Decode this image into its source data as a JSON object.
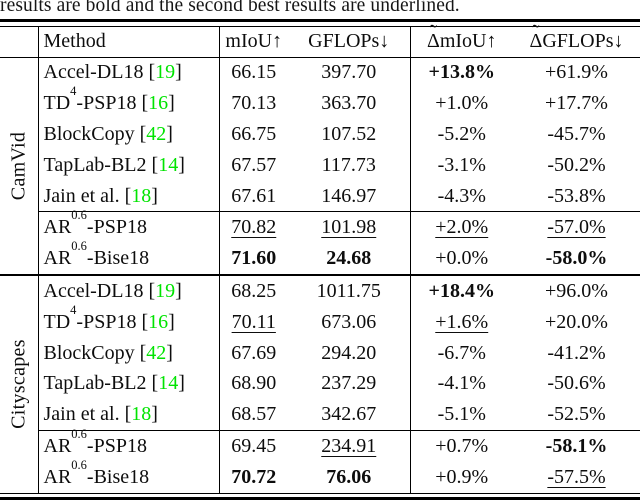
{
  "caption": "results are bold and the second best results are underlined.",
  "punct": {
    "lbracket": "[",
    "rbracket": "]"
  },
  "colors": {
    "citation_green": "#00e400",
    "rule_black": "#000000",
    "text": "#0d0d0d"
  },
  "header": {
    "method": "Method",
    "miou": "mIoU↑",
    "gflops": "GFLOPs↓",
    "tilde": "˜",
    "delta": "Δ",
    "dmiou_rest": "mIoU↑",
    "dgflops_rest": "GFLOPs↓"
  },
  "sections": [
    {
      "label": "CamVid",
      "rows": [
        {
          "method": {
            "pre": "Accel-DL18",
            "cite": "19"
          },
          "vals": [
            "66.15",
            "397.70",
            "+13.8%",
            "+61.9%"
          ],
          "emphasis": [
            "",
            "",
            "bold",
            ""
          ]
        },
        {
          "method": {
            "pre": "TD",
            "sup": "4",
            "post": "-PSP18",
            "cite": "16"
          },
          "vals": [
            "70.13",
            "363.70",
            "+1.0%",
            "+17.7%"
          ],
          "emphasis": [
            "",
            "",
            "",
            ""
          ]
        },
        {
          "method": {
            "pre": "BlockCopy",
            "cite": "42"
          },
          "vals": [
            "66.75",
            "107.52",
            "-5.2%",
            "-45.7%"
          ],
          "emphasis": [
            "",
            "",
            "",
            ""
          ]
        },
        {
          "method": {
            "pre": "TapLab-BL2",
            "cite": "14"
          },
          "vals": [
            "67.57",
            "117.73",
            "-3.1%",
            "-50.2%"
          ],
          "emphasis": [
            "",
            "",
            "",
            ""
          ]
        },
        {
          "method": {
            "pre": "Jain et al.",
            "cite": "18"
          },
          "vals": [
            "67.61",
            "146.97",
            "-4.3%",
            "-53.8%"
          ],
          "emphasis": [
            "",
            "",
            "",
            ""
          ]
        },
        {
          "method": {
            "pre": "AR",
            "sup": "0.6",
            "post": "-PSP18"
          },
          "vals": [
            "70.82",
            "101.98",
            "+2.0%",
            "-57.0%"
          ],
          "emphasis": [
            "underline",
            "underline",
            "underline",
            "underline"
          ]
        },
        {
          "method": {
            "pre": "AR",
            "sup": "0.6",
            "post": "-Bise18"
          },
          "vals": [
            "71.60",
            "24.68",
            "+0.0%",
            "-58.0%"
          ],
          "emphasis": [
            "bold",
            "bold",
            "",
            "bold"
          ]
        }
      ]
    },
    {
      "label": "Cityscapes",
      "rows": [
        {
          "method": {
            "pre": "Accel-DL18",
            "cite": "19"
          },
          "vals": [
            "68.25",
            "1011.75",
            "+18.4%",
            "+96.0%"
          ],
          "emphasis": [
            "",
            "",
            "bold",
            ""
          ]
        },
        {
          "method": {
            "pre": "TD",
            "sup": "4",
            "post": "-PSP18",
            "cite": "16"
          },
          "vals": [
            "70.11",
            "673.06",
            "+1.6%",
            "+20.0%"
          ],
          "emphasis": [
            "underline",
            "",
            "underline",
            ""
          ]
        },
        {
          "method": {
            "pre": "BlockCopy",
            "cite": "42"
          },
          "vals": [
            "67.69",
            "294.20",
            "-6.7%",
            "-41.2%"
          ],
          "emphasis": [
            "",
            "",
            "",
            ""
          ]
        },
        {
          "method": {
            "pre": "TapLab-BL2",
            "cite": "14"
          },
          "vals": [
            "68.90",
            "237.29",
            "-4.1%",
            "-50.6%"
          ],
          "emphasis": [
            "",
            "",
            "",
            ""
          ]
        },
        {
          "method": {
            "pre": "Jain et al.",
            "cite": "18"
          },
          "vals": [
            "68.57",
            "342.67",
            "-5.1%",
            "-52.5%"
          ],
          "emphasis": [
            "",
            "",
            "",
            ""
          ]
        },
        {
          "method": {
            "pre": "AR",
            "sup": "0.6",
            "post": "-PSP18"
          },
          "vals": [
            "69.45",
            "234.91",
            "+0.7%",
            "-58.1%"
          ],
          "emphasis": [
            "",
            "underline",
            "",
            "bold"
          ]
        },
        {
          "method": {
            "pre": "AR",
            "sup": "0.6",
            "post": "-Bise18"
          },
          "vals": [
            "70.72",
            "76.06",
            "+0.9%",
            "-57.5%"
          ],
          "emphasis": [
            "bold",
            "bold",
            "",
            "underline"
          ]
        }
      ]
    }
  ]
}
